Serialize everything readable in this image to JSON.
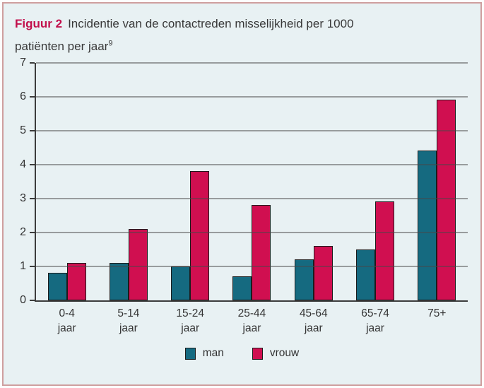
{
  "panel": {
    "figure_label": "Figuur 2",
    "title_line1": "Incidentie van de contactreden misselijkheid per 1000",
    "title_line2": "patiënten per jaar",
    "title_sup": "9"
  },
  "colors": {
    "panel_background": "#e8f1f3",
    "panel_border": "#cf9f9f",
    "figure_label": "#c2104c",
    "axis": "#3c3c3c",
    "man": "#156a80",
    "vrouw": "#d00f50"
  },
  "chart_data": {
    "type": "bar",
    "title": "Incidentie van de contactreden misselijkheid per 1000 patiënten per jaar",
    "source_superscript": "9",
    "categories": [
      "0-4 jaar",
      "5-14 jaar",
      "15-24 jaar",
      "25-44 jaar",
      "45-64 jaar",
      "65-74 jaar",
      "75+"
    ],
    "category_labels": [
      [
        "0-4",
        "jaar"
      ],
      [
        "5-14",
        "jaar"
      ],
      [
        "15-24",
        "jaar"
      ],
      [
        "25-44",
        "jaar"
      ],
      [
        "45-64",
        "jaar"
      ],
      [
        "65-74",
        "jaar"
      ],
      [
        "75+"
      ]
    ],
    "series": [
      {
        "name": "man",
        "color": "#156a80",
        "values": [
          0.8,
          1.1,
          1.0,
          0.7,
          1.2,
          1.5,
          4.4
        ]
      },
      {
        "name": "vrouw",
        "color": "#d00f50",
        "values": [
          1.1,
          2.1,
          3.8,
          2.8,
          1.6,
          2.9,
          5.9
        ]
      }
    ],
    "xlabel": "",
    "ylabel": "",
    "ylim": [
      0,
      7
    ],
    "yticks": [
      0,
      1,
      2,
      3,
      4,
      5,
      6,
      7
    ],
    "grid": "horizontal",
    "legend_position": "bottom"
  }
}
